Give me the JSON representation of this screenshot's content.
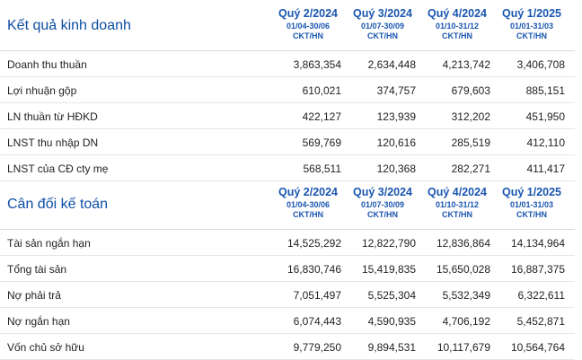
{
  "income": {
    "title": "Kết quả kinh doanh",
    "periods": [
      {
        "label": "Quý 2/2024",
        "range": "01/04-30/06",
        "unit": "CKT/HN"
      },
      {
        "label": "Quý 3/2024",
        "range": "01/07-30/09",
        "unit": "CKT/HN"
      },
      {
        "label": "Quý 4/2024",
        "range": "01/10-31/12",
        "unit": "CKT/HN"
      },
      {
        "label": "Quý 1/2025",
        "range": "01/01-31/03",
        "unit": "CKT/HN"
      }
    ],
    "rows": [
      {
        "label": "Doanh thu thuần",
        "values": [
          "3,863,354",
          "2,634,448",
          "4,213,742",
          "3,406,708"
        ]
      },
      {
        "label": "Lợi nhuận gộp",
        "values": [
          "610,021",
          "374,757",
          "679,603",
          "885,151"
        ]
      },
      {
        "label": "LN thuần từ HĐKD",
        "values": [
          "422,127",
          "123,939",
          "312,202",
          "451,950"
        ]
      },
      {
        "label": "LNST thu nhập DN",
        "values": [
          "569,769",
          "120,616",
          "285,519",
          "412,110"
        ]
      },
      {
        "label": "LNST của CĐ cty mẹ",
        "values": [
          "568,511",
          "120,368",
          "282,271",
          "411,417"
        ]
      }
    ]
  },
  "balance": {
    "title": "Cân đối kế toán",
    "periods": [
      {
        "label": "Quý 2/2024",
        "range": "01/04-30/06",
        "unit": "CKT/HN"
      },
      {
        "label": "Quý 3/2024",
        "range": "01/07-30/09",
        "unit": "CKT/HN"
      },
      {
        "label": "Quý 4/2024",
        "range": "01/10-31/12",
        "unit": "CKT/HN"
      },
      {
        "label": "Quý 1/2025",
        "range": "01/01-31/03",
        "unit": "CKT/HN"
      }
    ],
    "rows": [
      {
        "label": "Tài sản ngắn hạn",
        "values": [
          "14,525,292",
          "12,822,790",
          "12,836,864",
          "14,134,964"
        ]
      },
      {
        "label": "Tổng tài sản",
        "values": [
          "16,830,746",
          "15,419,835",
          "15,650,028",
          "16,887,375"
        ]
      },
      {
        "label": "Nợ phải trả",
        "values": [
          "7,051,497",
          "5,525,304",
          "5,532,349",
          "6,322,611"
        ]
      },
      {
        "label": "Nợ ngắn hạn",
        "values": [
          "6,074,443",
          "4,590,935",
          "4,706,192",
          "5,452,871"
        ]
      },
      {
        "label": "Vốn chủ sở hữu",
        "values": [
          "9,779,250",
          "9,894,531",
          "10,117,679",
          "10,564,764"
        ]
      }
    ]
  }
}
